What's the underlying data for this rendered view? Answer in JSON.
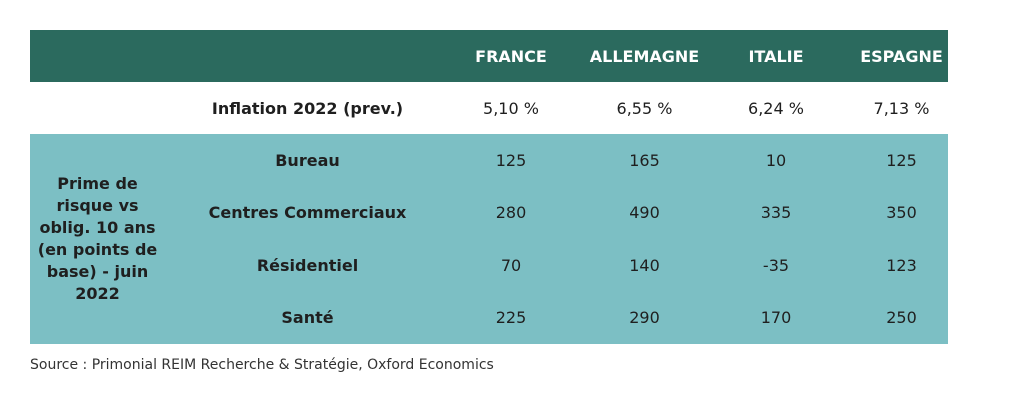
{
  "header": {
    "columns": [
      "FRANCE",
      "ALLEMAGNE",
      "ITALIE",
      "ESPAGNE"
    ]
  },
  "inflation": {
    "label": "Inflation 2022 (prev.)",
    "values": [
      "5,10 %",
      "6,55 %",
      "6,24 %",
      "7,13 %"
    ]
  },
  "risk_block": {
    "label": "Prime de risque vs oblig. 10 ans (en points de base) - juin 2022",
    "rows": [
      {
        "category": "Bureau",
        "values": [
          "125",
          "165",
          "10",
          "125"
        ]
      },
      {
        "category": "Centres Commerciaux",
        "values": [
          "280",
          "490",
          "335",
          "350"
        ]
      },
      {
        "category": "Résidentiel",
        "values": [
          "70",
          "140",
          "-35",
          "123"
        ]
      },
      {
        "category": "Santé",
        "values": [
          "225",
          "290",
          "170",
          "250"
        ]
      }
    ]
  },
  "source": "Source : Primonial REIM Recherche & Stratégie, Oxford Economics",
  "colors": {
    "header_bg": "#2b6a5e",
    "block_bg": "#7cbfc4"
  }
}
